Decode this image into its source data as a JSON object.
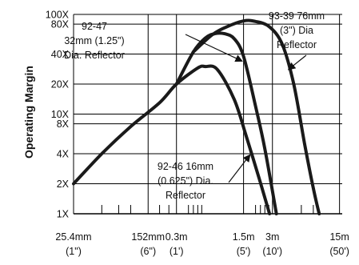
{
  "chart_data": {
    "type": "line",
    "ylabel": "Operating Margin",
    "x_scale": "log",
    "y_scale": "log",
    "xlim": [
      0.0254,
      16
    ],
    "ylim": [
      1,
      100
    ],
    "grid": true,
    "x_tick_labels": [
      {
        "value": 0.0254,
        "line1": "25.4mm",
        "line2": "(1\")"
      },
      {
        "value": 0.152,
        "line1": "152mm",
        "line2": "(6\")"
      },
      {
        "value": 0.3,
        "line1": "0.3m",
        "line2": "(1')"
      },
      {
        "value": 1.5,
        "line1": "1.5m",
        "line2": "(5')"
      },
      {
        "value": 3,
        "line1": "3m",
        "line2": "(10')"
      },
      {
        "value": 15,
        "line1": "15m",
        "line2": "(50')"
      }
    ],
    "y_tick_labels": [
      {
        "value": 1,
        "label": "1X"
      },
      {
        "value": 2,
        "label": "2X"
      },
      {
        "value": 4,
        "label": "4X"
      },
      {
        "value": 8,
        "label": "8X"
      },
      {
        "value": 10,
        "label": "10X"
      },
      {
        "value": 20,
        "label": "20X"
      },
      {
        "value": 40,
        "label": "40X"
      },
      {
        "value": 80,
        "label": "80X"
      },
      {
        "value": 100,
        "label": "100X"
      }
    ],
    "x_minor_ticks": [
      0.05,
      0.075,
      0.1,
      0.2,
      0.25,
      0.4,
      0.45,
      0.5,
      0.55,
      2,
      2.25,
      2.5,
      2.75,
      6,
      8
    ],
    "series": [
      {
        "name": "92-46 16mm (0.625\") Dia. Reflector",
        "points": [
          [
            0.0254,
            2.0
          ],
          [
            0.05,
            4.0
          ],
          [
            0.1,
            7.5
          ],
          [
            0.2,
            13
          ],
          [
            0.3,
            20
          ],
          [
            0.5,
            29
          ],
          [
            0.6,
            30
          ],
          [
            0.8,
            28
          ],
          [
            1.2,
            14
          ],
          [
            1.6,
            6
          ],
          [
            2.2,
            2.2
          ],
          [
            2.8,
            1.0
          ]
        ]
      },
      {
        "name": "92-47 32mm (1.25\") Dia. Reflector",
        "points": [
          [
            0.3,
            20
          ],
          [
            0.45,
            42
          ],
          [
            0.6,
            58
          ],
          [
            0.75,
            64
          ],
          [
            0.95,
            64
          ],
          [
            1.2,
            57
          ],
          [
            1.5,
            38
          ],
          [
            2,
            12
          ],
          [
            2.5,
            4.5
          ],
          [
            3.3,
            1.0
          ]
        ]
      },
      {
        "name": "93-39 76mm (3\") Dia Reflector",
        "points": [
          [
            0.45,
            42
          ],
          [
            0.7,
            62
          ],
          [
            1,
            75
          ],
          [
            1.5,
            86
          ],
          [
            2,
            85
          ],
          [
            2.8,
            75
          ],
          [
            3.8,
            50
          ],
          [
            5,
            20
          ],
          [
            6.5,
            5
          ],
          [
            8,
            1.8
          ],
          [
            9.2,
            1.0
          ]
        ]
      }
    ],
    "annotations": [
      {
        "lines": [
          "92-47",
          "32mm (1.25\")",
          "Dia. Reflector"
        ],
        "series_index": 1
      },
      {
        "lines": [
          "93-39 76mm",
          "(3\") Dia",
          "Reflector"
        ],
        "series_index": 2
      },
      {
        "lines": [
          "92-46 16mm",
          "(0.625\") Dia.",
          "Reflector"
        ],
        "series_index": 0
      }
    ]
  }
}
